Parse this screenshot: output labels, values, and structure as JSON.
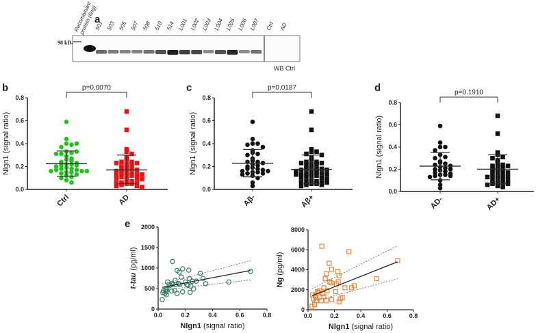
{
  "colors": {
    "ctrl": "#22c31c",
    "ad": "#ee1111",
    "black": "#111111",
    "tau": "#2e7d5b",
    "ng": "#e8843c"
  },
  "panel_labels": {
    "a": "a",
    "b": "b",
    "c": "c",
    "d": "d",
    "e": "e"
  },
  "western_blot": {
    "marker": "98 kDa",
    "lanes": [
      "Recombinant protein (6ng)",
      "501",
      "503",
      "505",
      "507",
      "508",
      "510",
      "514",
      "L001",
      "L002",
      "L003",
      "L004",
      "L005",
      "L006",
      "L007",
      "Ctrl",
      "AD"
    ],
    "band_intensity": [
      1.0,
      0.55,
      0.45,
      0.4,
      0.4,
      0.5,
      0.7,
      1.0,
      0.8,
      0.75,
      0.35,
      0.7,
      0.95,
      0.35,
      0.5,
      0,
      0
    ],
    "control_label": "WB Ctrl"
  },
  "chart_data": [
    {
      "id": "b",
      "type": "scatter",
      "ylabel": "Nlgn1 (signal ratio)",
      "ylim": [
        0,
        0.8
      ],
      "yticks": [
        "0.0",
        "0.2",
        "0.4",
        "0.6",
        "0.8"
      ],
      "categories": [
        "Ctrl",
        "AD"
      ],
      "pvalue": "p=0.0070",
      "series": [
        {
          "marker": "circle",
          "color": "#22c31c",
          "mean": 0.225,
          "sd": [
            0.115,
            0.335
          ],
          "values": [
            0.59,
            0.44,
            0.4,
            0.39,
            0.37,
            0.4,
            0.33,
            0.32,
            0.31,
            0.33,
            0.31,
            0.29,
            0.27,
            0.26,
            0.25,
            0.24,
            0.23,
            0.22,
            0.22,
            0.21,
            0.21,
            0.2,
            0.19,
            0.18,
            0.18,
            0.17,
            0.17,
            0.16,
            0.16,
            0.16,
            0.15,
            0.15,
            0.14,
            0.13,
            0.12,
            0.11,
            0.1,
            0.08,
            0.06
          ]
        },
        {
          "marker": "square",
          "color": "#ee1111",
          "mean": 0.17,
          "sd": [
            0.05,
            0.3
          ],
          "values": [
            0.68,
            0.52,
            0.35,
            0.33,
            0.31,
            0.28,
            0.26,
            0.24,
            0.24,
            0.23,
            0.23,
            0.22,
            0.21,
            0.2,
            0.19,
            0.18,
            0.17,
            0.17,
            0.16,
            0.15,
            0.14,
            0.14,
            0.13,
            0.13,
            0.13,
            0.12,
            0.12,
            0.11,
            0.1,
            0.1,
            0.09,
            0.08,
            0.07,
            0.06,
            0.06,
            0.06,
            0.05,
            0.05,
            0.04,
            0.03,
            0.03,
            0.02
          ]
        }
      ]
    },
    {
      "id": "c",
      "type": "scatter",
      "ylabel": "Nlgn1 (signal ratio)",
      "ylim": [
        0,
        0.8
      ],
      "yticks": [
        "0.0",
        "0.2",
        "0.4",
        "0.6",
        "0.8"
      ],
      "categories": [
        "Aβ-",
        "Aβ+"
      ],
      "pvalue": "p=0.0187",
      "series": [
        {
          "marker": "circle",
          "color": "#111111",
          "mean": 0.228,
          "sd": [
            0.11,
            0.35
          ],
          "values": [
            0.59,
            0.44,
            0.4,
            0.4,
            0.39,
            0.37,
            0.34,
            0.32,
            0.31,
            0.3,
            0.27,
            0.25,
            0.24,
            0.24,
            0.23,
            0.22,
            0.21,
            0.2,
            0.19,
            0.18,
            0.18,
            0.17,
            0.16,
            0.16,
            0.15,
            0.15,
            0.14,
            0.14,
            0.13,
            0.12,
            0.1,
            0.06,
            0.03
          ]
        },
        {
          "marker": "square",
          "color": "#111111",
          "mean": 0.175,
          "sd": [
            0.05,
            0.3
          ],
          "values": [
            0.68,
            0.52,
            0.35,
            0.33,
            0.33,
            0.31,
            0.3,
            0.28,
            0.26,
            0.24,
            0.24,
            0.23,
            0.23,
            0.22,
            0.22,
            0.21,
            0.19,
            0.18,
            0.18,
            0.18,
            0.17,
            0.17,
            0.16,
            0.15,
            0.15,
            0.14,
            0.14,
            0.13,
            0.13,
            0.13,
            0.12,
            0.12,
            0.11,
            0.1,
            0.1,
            0.09,
            0.08,
            0.07,
            0.07,
            0.06,
            0.06,
            0.06,
            0.05,
            0.05,
            0.04,
            0.04,
            0.03
          ]
        }
      ]
    },
    {
      "id": "d",
      "type": "scatter",
      "ylabel": "Nlgn1 (signal ratio)",
      "ylim": [
        0,
        0.8
      ],
      "yticks": [
        "0.0",
        "0.2",
        "0.4",
        "0.6",
        "0.8"
      ],
      "categories": [
        "AD-",
        "AD+"
      ],
      "pvalue": "p=0.1910",
      "series": [
        {
          "marker": "circle",
          "color": "#111111",
          "mean": 0.228,
          "sd": [
            0.105,
            0.35
          ],
          "values": [
            0.59,
            0.44,
            0.4,
            0.4,
            0.37,
            0.33,
            0.31,
            0.3,
            0.27,
            0.26,
            0.25,
            0.24,
            0.23,
            0.22,
            0.21,
            0.2,
            0.2,
            0.19,
            0.18,
            0.17,
            0.16,
            0.15,
            0.15,
            0.14,
            0.14,
            0.13,
            0.1,
            0.06,
            0.03
          ]
        },
        {
          "marker": "square",
          "color": "#111111",
          "mean": 0.2,
          "sd": [
            0.07,
            0.33
          ],
          "values": [
            0.68,
            0.52,
            0.35,
            0.33,
            0.31,
            0.3,
            0.28,
            0.26,
            0.24,
            0.23,
            0.23,
            0.22,
            0.21,
            0.2,
            0.19,
            0.18,
            0.18,
            0.17,
            0.15,
            0.14,
            0.14,
            0.13,
            0.13,
            0.12,
            0.11,
            0.1,
            0.09,
            0.08,
            0.08,
            0.07,
            0.07,
            0.06,
            0.05,
            0.04
          ]
        }
      ]
    },
    {
      "id": "e-tau",
      "type": "scatter",
      "xlabel_bold": "Nlgn1",
      "xlabel_rest": " (signal ratio)",
      "ylabel_bold": "t-tau",
      "ylabel_rest": " (pg/ml)",
      "xlim": [
        0,
        0.8
      ],
      "ylim": [
        0,
        2000
      ],
      "xticks": [
        "0.0",
        "0.2",
        "0.4",
        "0.6",
        "0.8"
      ],
      "yticks": [
        "0",
        "500",
        "1000",
        "1500",
        "2000"
      ],
      "marker": "open-circle",
      "color": "#2e7d5b",
      "points": [
        [
          0.03,
          230
        ],
        [
          0.035,
          400
        ],
        [
          0.04,
          450
        ],
        [
          0.05,
          380
        ],
        [
          0.055,
          470
        ],
        [
          0.06,
          420
        ],
        [
          0.06,
          350
        ],
        [
          0.065,
          480
        ],
        [
          0.07,
          660
        ],
        [
          0.08,
          600
        ],
        [
          0.09,
          580
        ],
        [
          0.1,
          620
        ],
        [
          0.1,
          440
        ],
        [
          0.105,
          1160
        ],
        [
          0.11,
          600
        ],
        [
          0.12,
          450
        ],
        [
          0.125,
          700
        ],
        [
          0.13,
          600
        ],
        [
          0.14,
          940
        ],
        [
          0.14,
          380
        ],
        [
          0.15,
          620
        ],
        [
          0.155,
          900
        ],
        [
          0.16,
          600
        ],
        [
          0.17,
          780
        ],
        [
          0.18,
          980
        ],
        [
          0.18,
          420
        ],
        [
          0.2,
          660
        ],
        [
          0.21,
          600
        ],
        [
          0.22,
          580
        ],
        [
          0.225,
          950
        ],
        [
          0.23,
          740
        ],
        [
          0.235,
          410
        ],
        [
          0.24,
          560
        ],
        [
          0.25,
          680
        ],
        [
          0.26,
          490
        ],
        [
          0.28,
          680
        ],
        [
          0.31,
          870
        ],
        [
          0.33,
          750
        ],
        [
          0.35,
          620
        ],
        [
          0.52,
          660
        ],
        [
          0.68,
          920
        ]
      ],
      "fit": [
        [
          0.03,
          530
        ],
        [
          0.68,
          940
        ]
      ],
      "ci_upper": [
        [
          0.03,
          610
        ],
        [
          0.68,
          1180
        ]
      ],
      "ci_lower": [
        [
          0.03,
          460
        ],
        [
          0.68,
          710
        ]
      ]
    },
    {
      "id": "e-ng",
      "type": "scatter",
      "xlabel_bold": "Nlgn1",
      "xlabel_rest": " (signal ratio)",
      "ylabel_bold": "Ng",
      "ylabel_rest": " (pg/ml)",
      "xlim": [
        0,
        0.8
      ],
      "ylim": [
        0,
        8000
      ],
      "xticks": [
        "0.0",
        "0.2",
        "0.4",
        "0.6",
        "0.8"
      ],
      "yticks": [
        "0",
        "2000",
        "4000",
        "6000",
        "8000"
      ],
      "marker": "open-square",
      "color": "#e8843c",
      "points": [
        [
          0.03,
          350
        ],
        [
          0.035,
          1500
        ],
        [
          0.04,
          1100
        ],
        [
          0.05,
          500
        ],
        [
          0.055,
          1400
        ],
        [
          0.06,
          1200
        ],
        [
          0.065,
          900
        ],
        [
          0.07,
          1800
        ],
        [
          0.08,
          1700
        ],
        [
          0.09,
          1900
        ],
        [
          0.1,
          900
        ],
        [
          0.105,
          6350
        ],
        [
          0.11,
          1600
        ],
        [
          0.12,
          1300
        ],
        [
          0.12,
          2200
        ],
        [
          0.13,
          3100
        ],
        [
          0.14,
          900
        ],
        [
          0.14,
          3600
        ],
        [
          0.145,
          1900
        ],
        [
          0.16,
          4650
        ],
        [
          0.165,
          2800
        ],
        [
          0.175,
          2700
        ],
        [
          0.18,
          4050
        ],
        [
          0.18,
          1000
        ],
        [
          0.21,
          1800
        ],
        [
          0.215,
          2600
        ],
        [
          0.225,
          3800
        ],
        [
          0.23,
          2800
        ],
        [
          0.235,
          3400
        ],
        [
          0.235,
          800
        ],
        [
          0.245,
          1100
        ],
        [
          0.26,
          1200
        ],
        [
          0.28,
          2200
        ],
        [
          0.31,
          5800
        ],
        [
          0.33,
          2200
        ],
        [
          0.35,
          2400
        ],
        [
          0.52,
          3100
        ],
        [
          0.68,
          4900
        ]
      ],
      "fit": [
        [
          0.03,
          1400
        ],
        [
          0.68,
          4800
        ]
      ],
      "ci_upper": [
        [
          0.03,
          2100
        ],
        [
          0.68,
          6400
        ]
      ],
      "ci_lower": [
        [
          0.03,
          800
        ],
        [
          0.68,
          3100
        ]
      ]
    }
  ]
}
